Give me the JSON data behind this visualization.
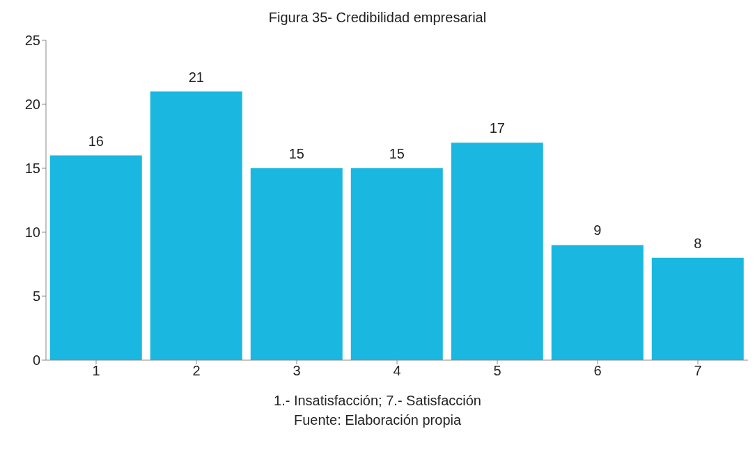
{
  "chart_data": {
    "type": "bar",
    "title": "Figura 35- Credibilidad empresarial",
    "xlabel": "1.- Insatisfacción; 7.- Satisfacción",
    "annotations": [
      "Fuente: Elaboración propia"
    ],
    "categories": [
      "1",
      "2",
      "3",
      "4",
      "5",
      "6",
      "7"
    ],
    "values": [
      16,
      21,
      15,
      15,
      17,
      9,
      8
    ],
    "color": "#1ab8e0",
    "ylim": [
      0,
      25
    ],
    "yticks": [
      0,
      5,
      10,
      15,
      20,
      25
    ],
    "grid": false,
    "data_labels": true
  }
}
